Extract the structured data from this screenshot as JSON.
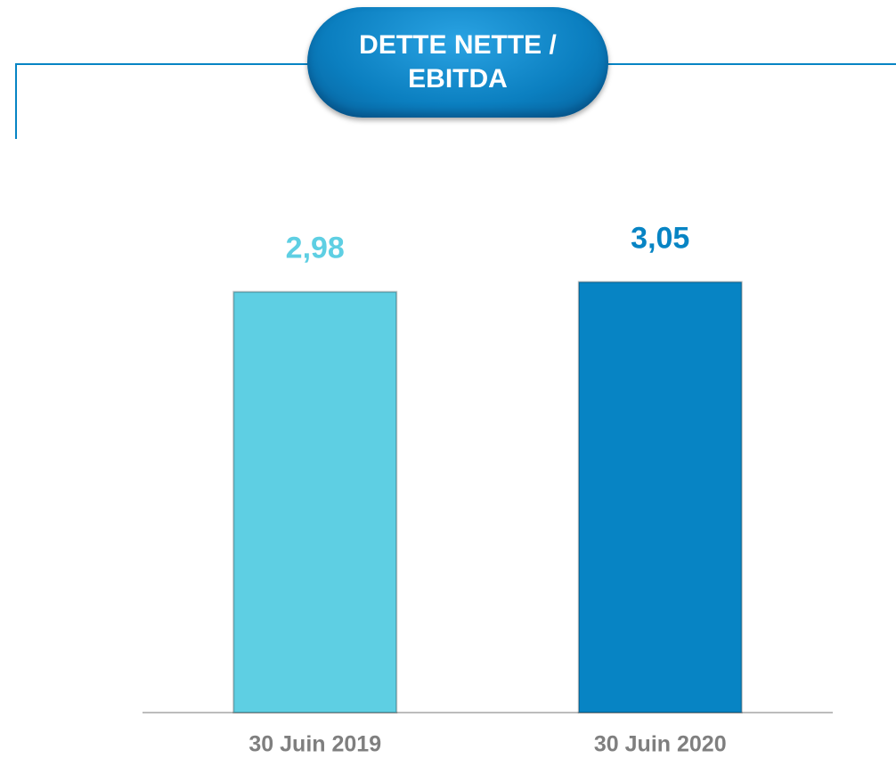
{
  "chart_data": {
    "type": "bar",
    "title": "DETTE NETTE / EBITDA",
    "categories": [
      "30 Juin 2019",
      "30 Juin 2020"
    ],
    "values": [
      2.98,
      3.05
    ],
    "value_labels": [
      "2,98",
      "3,05"
    ],
    "colors": [
      "#5ecfe3",
      "#0784c4"
    ],
    "ylim": [
      0,
      4
    ]
  }
}
